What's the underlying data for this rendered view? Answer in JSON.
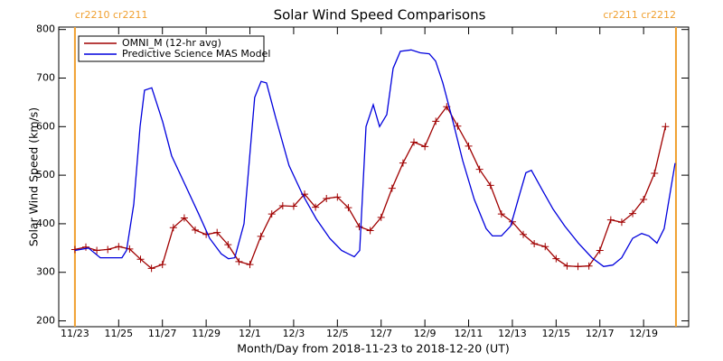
{
  "chart_data": {
    "type": "line",
    "title": "Solar Wind Speed Comparisons",
    "xlabel": "Month/Day from 2018-11-23 to 2018-12-20 (UT)",
    "ylabel": "Solar Wind Speed (km/s)",
    "xlim": [
      -0.74,
      28.06
    ],
    "ylim": [
      188,
      805
    ],
    "xticks": [
      {
        "value": 0,
        "label": "11/23"
      },
      {
        "value": 2,
        "label": "11/25"
      },
      {
        "value": 4,
        "label": "11/27"
      },
      {
        "value": 6,
        "label": "11/29"
      },
      {
        "value": 8,
        "label": "12/1"
      },
      {
        "value": 10,
        "label": "12/3"
      },
      {
        "value": 12,
        "label": "12/5"
      },
      {
        "value": 14,
        "label": "12/7"
      },
      {
        "value": 16,
        "label": "12/9"
      },
      {
        "value": 18,
        "label": "12/11"
      },
      {
        "value": 20,
        "label": "12/13"
      },
      {
        "value": 22,
        "label": "12/15"
      },
      {
        "value": 24,
        "label": "12/17"
      },
      {
        "value": 26,
        "label": "12/19"
      }
    ],
    "yticks": [
      200,
      300,
      400,
      500,
      600,
      700,
      800
    ],
    "markers": [
      {
        "x": 0,
        "label": "cr2210 cr2211",
        "color": "#f0a030"
      },
      {
        "x": 27.48,
        "label": "cr2211 cr2212",
        "color": "#f0a030"
      }
    ],
    "legend": "upper left",
    "series": [
      {
        "name": "OMNI_M (12-hr avg)",
        "color": "#a00000",
        "marker": "+",
        "x": [
          0,
          0.5,
          1,
          1.5,
          2,
          2.5,
          3,
          3.5,
          4,
          4.5,
          5,
          5.5,
          6,
          6.5,
          7,
          7.5,
          8,
          8.5,
          9,
          9.5,
          10,
          10.5,
          11,
          11.5,
          12,
          12.5,
          13,
          13.5,
          14,
          14.5,
          15,
          15.5,
          16,
          16.5,
          17,
          17.5,
          18,
          18.5,
          19,
          19.5,
          20,
          20.5,
          21,
          21.5,
          22,
          22.5,
          23,
          23.5,
          24,
          24.5,
          25,
          25.5,
          26,
          26.5,
          27
        ],
        "values": [
          347,
          352,
          345,
          347,
          353,
          348,
          327,
          308,
          316,
          392,
          412,
          387,
          378,
          382,
          357,
          322,
          316,
          374,
          420,
          437,
          436,
          461,
          434,
          452,
          455,
          433,
          394,
          386,
          413,
          473,
          525,
          568,
          559,
          611,
          641,
          601,
          560,
          512,
          479,
          420,
          404,
          378,
          359,
          353,
          328,
          313,
          312,
          313,
          345,
          408,
          403,
          421,
          450,
          504,
          600
        ]
      },
      {
        "name": "Predictive Science MAS Model",
        "color": "#0000dd",
        "x": [
          0,
          0.62,
          1.16,
          2.15,
          2.36,
          2.69,
          2.98,
          3.18,
          3.51,
          4.01,
          4.42,
          5.04,
          5.66,
          6.16,
          6.69,
          7.02,
          7.31,
          7.73,
          8.22,
          8.51,
          8.76,
          9.17,
          9.79,
          10.41,
          11.03,
          11.65,
          12.19,
          12.77,
          13.02,
          13.31,
          13.64,
          13.93,
          14.26,
          14.55,
          14.88,
          15.37,
          15.79,
          16.2,
          16.49,
          16.82,
          17.23,
          17.73,
          18.26,
          18.8,
          19.09,
          19.5,
          19.92,
          20.33,
          20.62,
          20.87,
          21.36,
          21.86,
          22.4,
          23.02,
          23.64,
          24.17,
          24.59,
          25.0,
          25.5,
          25.91,
          26.24,
          26.61,
          26.94,
          27.44
        ],
        "values": [
          345,
          350,
          330,
          330,
          345,
          440,
          600,
          675,
          680,
          610,
          540,
          480,
          420,
          370,
          338,
          328,
          330,
          400,
          660,
          693,
          690,
          620,
          520,
          460,
          410,
          370,
          345,
          332,
          345,
          600,
          645,
          600,
          625,
          720,
          755,
          758,
          752,
          750,
          735,
          690,
          620,
          530,
          450,
          390,
          375,
          375,
          395,
          460,
          505,
          510,
          470,
          430,
          395,
          360,
          330,
          312,
          315,
          330,
          370,
          380,
          375,
          360,
          390,
          525
        ]
      }
    ]
  }
}
